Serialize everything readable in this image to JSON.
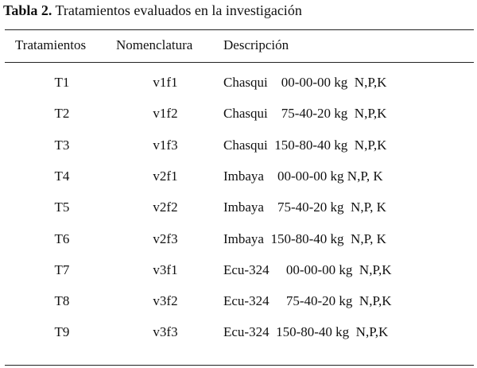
{
  "caption": {
    "label": "Tabla 2.",
    "text": " Tratamientos evaluados en la investigación"
  },
  "headers": [
    "Tratamientos",
    "Nomenclatura",
    "Descripción"
  ],
  "rows": [
    {
      "treatment": "T1",
      "code": "v1f1",
      "description": "Chasqui    00-00-00 kg  N,P,K"
    },
    {
      "treatment": "T2",
      "code": "v1f2",
      "description": "Chasqui    75-40-20 kg  N,P,K"
    },
    {
      "treatment": "T3",
      "code": "v1f3",
      "description": "Chasqui  150-80-40 kg  N,P,K"
    },
    {
      "treatment": "T4",
      "code": "v2f1",
      "description": "Imbaya    00-00-00 kg N,P, K"
    },
    {
      "treatment": "T5",
      "code": "v2f2",
      "description": "Imbaya    75-40-20 kg  N,P, K"
    },
    {
      "treatment": "T6",
      "code": "v2f3",
      "description": "Imbaya  150-80-40 kg  N,P, K"
    },
    {
      "treatment": "T7",
      "code": "v3f1",
      "description": "Ecu-324     00-00-00 kg  N,P,K"
    },
    {
      "treatment": "T8",
      "code": "v3f2",
      "description": "Ecu-324     75-40-20 kg  N,P,K"
    },
    {
      "treatment": "T9",
      "code": "v3f3",
      "description": "Ecu-324  150-80-40 kg  N,P,K"
    }
  ]
}
